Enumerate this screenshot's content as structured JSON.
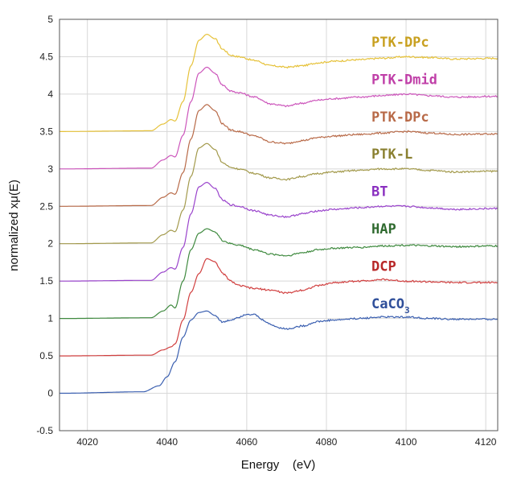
{
  "chart_data": {
    "type": "line",
    "title": "",
    "xlabel": "Energy    (eV)",
    "ylabel": "normalized xμ(E)",
    "xlim": [
      4013,
      4123
    ],
    "ylim": [
      -0.5,
      5
    ],
    "xticks": [
      "4020",
      "4040",
      "4060",
      "4080",
      "4100",
      "4120"
    ],
    "yticks": [
      "-0.5",
      "0",
      "0.5",
      "1",
      "1.5",
      "2",
      "2.5",
      "3",
      "3.5",
      "4",
      "4.5",
      "5"
    ],
    "grid": true,
    "legend_placement": "inline labels at right, top to bottom",
    "series": [
      {
        "name": "PTK-DPc",
        "color": "#e6c23a",
        "offset": 3.5,
        "x": [
          4013,
          4036,
          4039,
          4041,
          4042,
          4044,
          4046,
          4048,
          4050,
          4052,
          4054,
          4056,
          4058,
          4062,
          4066,
          4070,
          4074,
          4078,
          4082,
          4088,
          4094,
          4100,
          4106,
          4112,
          4123
        ],
        "y": [
          3.5,
          3.51,
          3.6,
          3.66,
          3.64,
          3.9,
          4.38,
          4.72,
          4.8,
          4.74,
          4.6,
          4.52,
          4.5,
          4.45,
          4.38,
          4.36,
          4.38,
          4.42,
          4.44,
          4.46,
          4.48,
          4.5,
          4.49,
          4.47,
          4.48
        ]
      },
      {
        "name": "PTK-Dmid",
        "color": "#cc55bb",
        "offset": 3.0,
        "x": [
          4013,
          4036,
          4039,
          4041,
          4042,
          4044,
          4046,
          4048,
          4050,
          4052,
          4054,
          4056,
          4058,
          4062,
          4066,
          4070,
          4074,
          4078,
          4082,
          4088,
          4094,
          4100,
          4106,
          4112,
          4123
        ],
        "y": [
          3.0,
          3.01,
          3.12,
          3.18,
          3.16,
          3.45,
          3.9,
          4.28,
          4.36,
          4.28,
          4.12,
          4.04,
          4.02,
          3.96,
          3.87,
          3.84,
          3.88,
          3.92,
          3.94,
          3.96,
          3.98,
          4.0,
          3.98,
          3.96,
          3.97
        ]
      },
      {
        "name": "PTK-DPc",
        "color": "#b86a48",
        "offset": 2.5,
        "x": [
          4013,
          4036,
          4039,
          4041,
          4042,
          4044,
          4046,
          4048,
          4050,
          4052,
          4054,
          4056,
          4058,
          4062,
          4066,
          4070,
          4074,
          4078,
          4082,
          4088,
          4094,
          4100,
          4106,
          4112,
          4123
        ],
        "y": [
          2.5,
          2.51,
          2.62,
          2.68,
          2.66,
          2.95,
          3.4,
          3.78,
          3.86,
          3.78,
          3.6,
          3.52,
          3.5,
          3.44,
          3.36,
          3.34,
          3.38,
          3.42,
          3.44,
          3.46,
          3.48,
          3.5,
          3.48,
          3.46,
          3.47
        ]
      },
      {
        "name": "PTK-L",
        "color": "#a39a4c",
        "offset": 2.0,
        "x": [
          4013,
          4036,
          4039,
          4041,
          4042,
          4044,
          4046,
          4048,
          4050,
          4052,
          4054,
          4056,
          4058,
          4062,
          4066,
          4070,
          4074,
          4078,
          4082,
          4088,
          4094,
          4100,
          4106,
          4112,
          4123
        ],
        "y": [
          2.0,
          2.01,
          2.12,
          2.18,
          2.16,
          2.45,
          2.9,
          3.28,
          3.34,
          3.26,
          3.08,
          3.02,
          3.0,
          2.94,
          2.88,
          2.86,
          2.9,
          2.94,
          2.96,
          2.98,
          3.0,
          3.0,
          2.98,
          2.96,
          2.97
        ]
      },
      {
        "name": "BT",
        "color": "#9a44cc",
        "offset": 1.5,
        "x": [
          4013,
          4036,
          4039,
          4041,
          4042,
          4044,
          4046,
          4048,
          4050,
          4052,
          4054,
          4056,
          4058,
          4062,
          4066,
          4070,
          4074,
          4078,
          4082,
          4088,
          4094,
          4100,
          4106,
          4112,
          4123
        ],
        "y": [
          1.5,
          1.51,
          1.62,
          1.68,
          1.66,
          1.95,
          2.4,
          2.76,
          2.82,
          2.74,
          2.58,
          2.52,
          2.5,
          2.44,
          2.38,
          2.36,
          2.4,
          2.44,
          2.46,
          2.48,
          2.5,
          2.5,
          2.48,
          2.46,
          2.47
        ]
      },
      {
        "name": "HAP",
        "color": "#3f8a3f",
        "offset": 1.0,
        "x": [
          4013,
          4036,
          4039,
          4041,
          4042,
          4044,
          4046,
          4048,
          4050,
          4052,
          4054,
          4056,
          4058,
          4062,
          4066,
          4070,
          4074,
          4078,
          4082,
          4088,
          4094,
          4100,
          4106,
          4112,
          4123
        ],
        "y": [
          1.0,
          1.01,
          1.1,
          1.18,
          1.14,
          1.5,
          1.92,
          2.14,
          2.2,
          2.16,
          2.04,
          2.0,
          1.98,
          1.92,
          1.86,
          1.84,
          1.88,
          1.92,
          1.94,
          1.95,
          1.97,
          1.98,
          1.97,
          1.96,
          1.97
        ]
      },
      {
        "name": "DCP",
        "color": "#d14040",
        "offset": 0.5,
        "x": [
          4013,
          4036,
          4039,
          4041,
          4042,
          4044,
          4046,
          4048,
          4050,
          4052,
          4054,
          4056,
          4058,
          4062,
          4066,
          4070,
          4074,
          4078,
          4082,
          4088,
          4094,
          4100,
          4106,
          4112,
          4123
        ],
        "y": [
          0.5,
          0.51,
          0.58,
          0.62,
          0.66,
          0.98,
          1.35,
          1.6,
          1.8,
          1.76,
          1.6,
          1.5,
          1.44,
          1.4,
          1.38,
          1.34,
          1.38,
          1.44,
          1.48,
          1.5,
          1.52,
          1.5,
          1.49,
          1.48,
          1.48
        ]
      },
      {
        "name": "CaCO3",
        "color": "#3a5fb0",
        "offset": 0.0,
        "x": [
          4013,
          4034,
          4038,
          4040,
          4042,
          4044,
          4046,
          4048,
          4050,
          4052,
          4054,
          4056,
          4058,
          4060,
          4062,
          4064,
          4066,
          4068,
          4070,
          4074,
          4078,
          4082,
          4088,
          4094,
          4100,
          4106,
          4112,
          4123
        ],
        "y": [
          0.0,
          0.02,
          0.1,
          0.22,
          0.42,
          0.75,
          0.98,
          1.08,
          1.1,
          1.04,
          0.95,
          0.98,
          1.02,
          1.06,
          1.05,
          0.98,
          0.92,
          0.88,
          0.86,
          0.9,
          0.96,
          0.98,
          1.0,
          1.02,
          1.02,
          1.0,
          0.99,
          0.99
        ]
      }
    ],
    "labels": [
      {
        "text": "PTK-DPc",
        "sub": "",
        "color": "#c8a020",
        "y": 4.7
      },
      {
        "text": "PTK-Dmid",
        "sub": "",
        "color": "#c040a8",
        "y": 4.2
      },
      {
        "text": "PTK-DPc",
        "sub": "",
        "color": "#b86a48",
        "y": 3.7
      },
      {
        "text": "PTK-L",
        "sub": "",
        "color": "#8a8030",
        "y": 3.2
      },
      {
        "text": "BT",
        "sub": "",
        "color": "#8a30c0",
        "y": 2.7
      },
      {
        "text": "HAP",
        "sub": "",
        "color": "#2f6a2f",
        "y": 2.2
      },
      {
        "text": "DCP",
        "sub": "",
        "color": "#b82828",
        "y": 1.7
      },
      {
        "text": "CaCO",
        "sub": "3",
        "color": "#2f4f9a",
        "y": 1.2
      }
    ]
  }
}
